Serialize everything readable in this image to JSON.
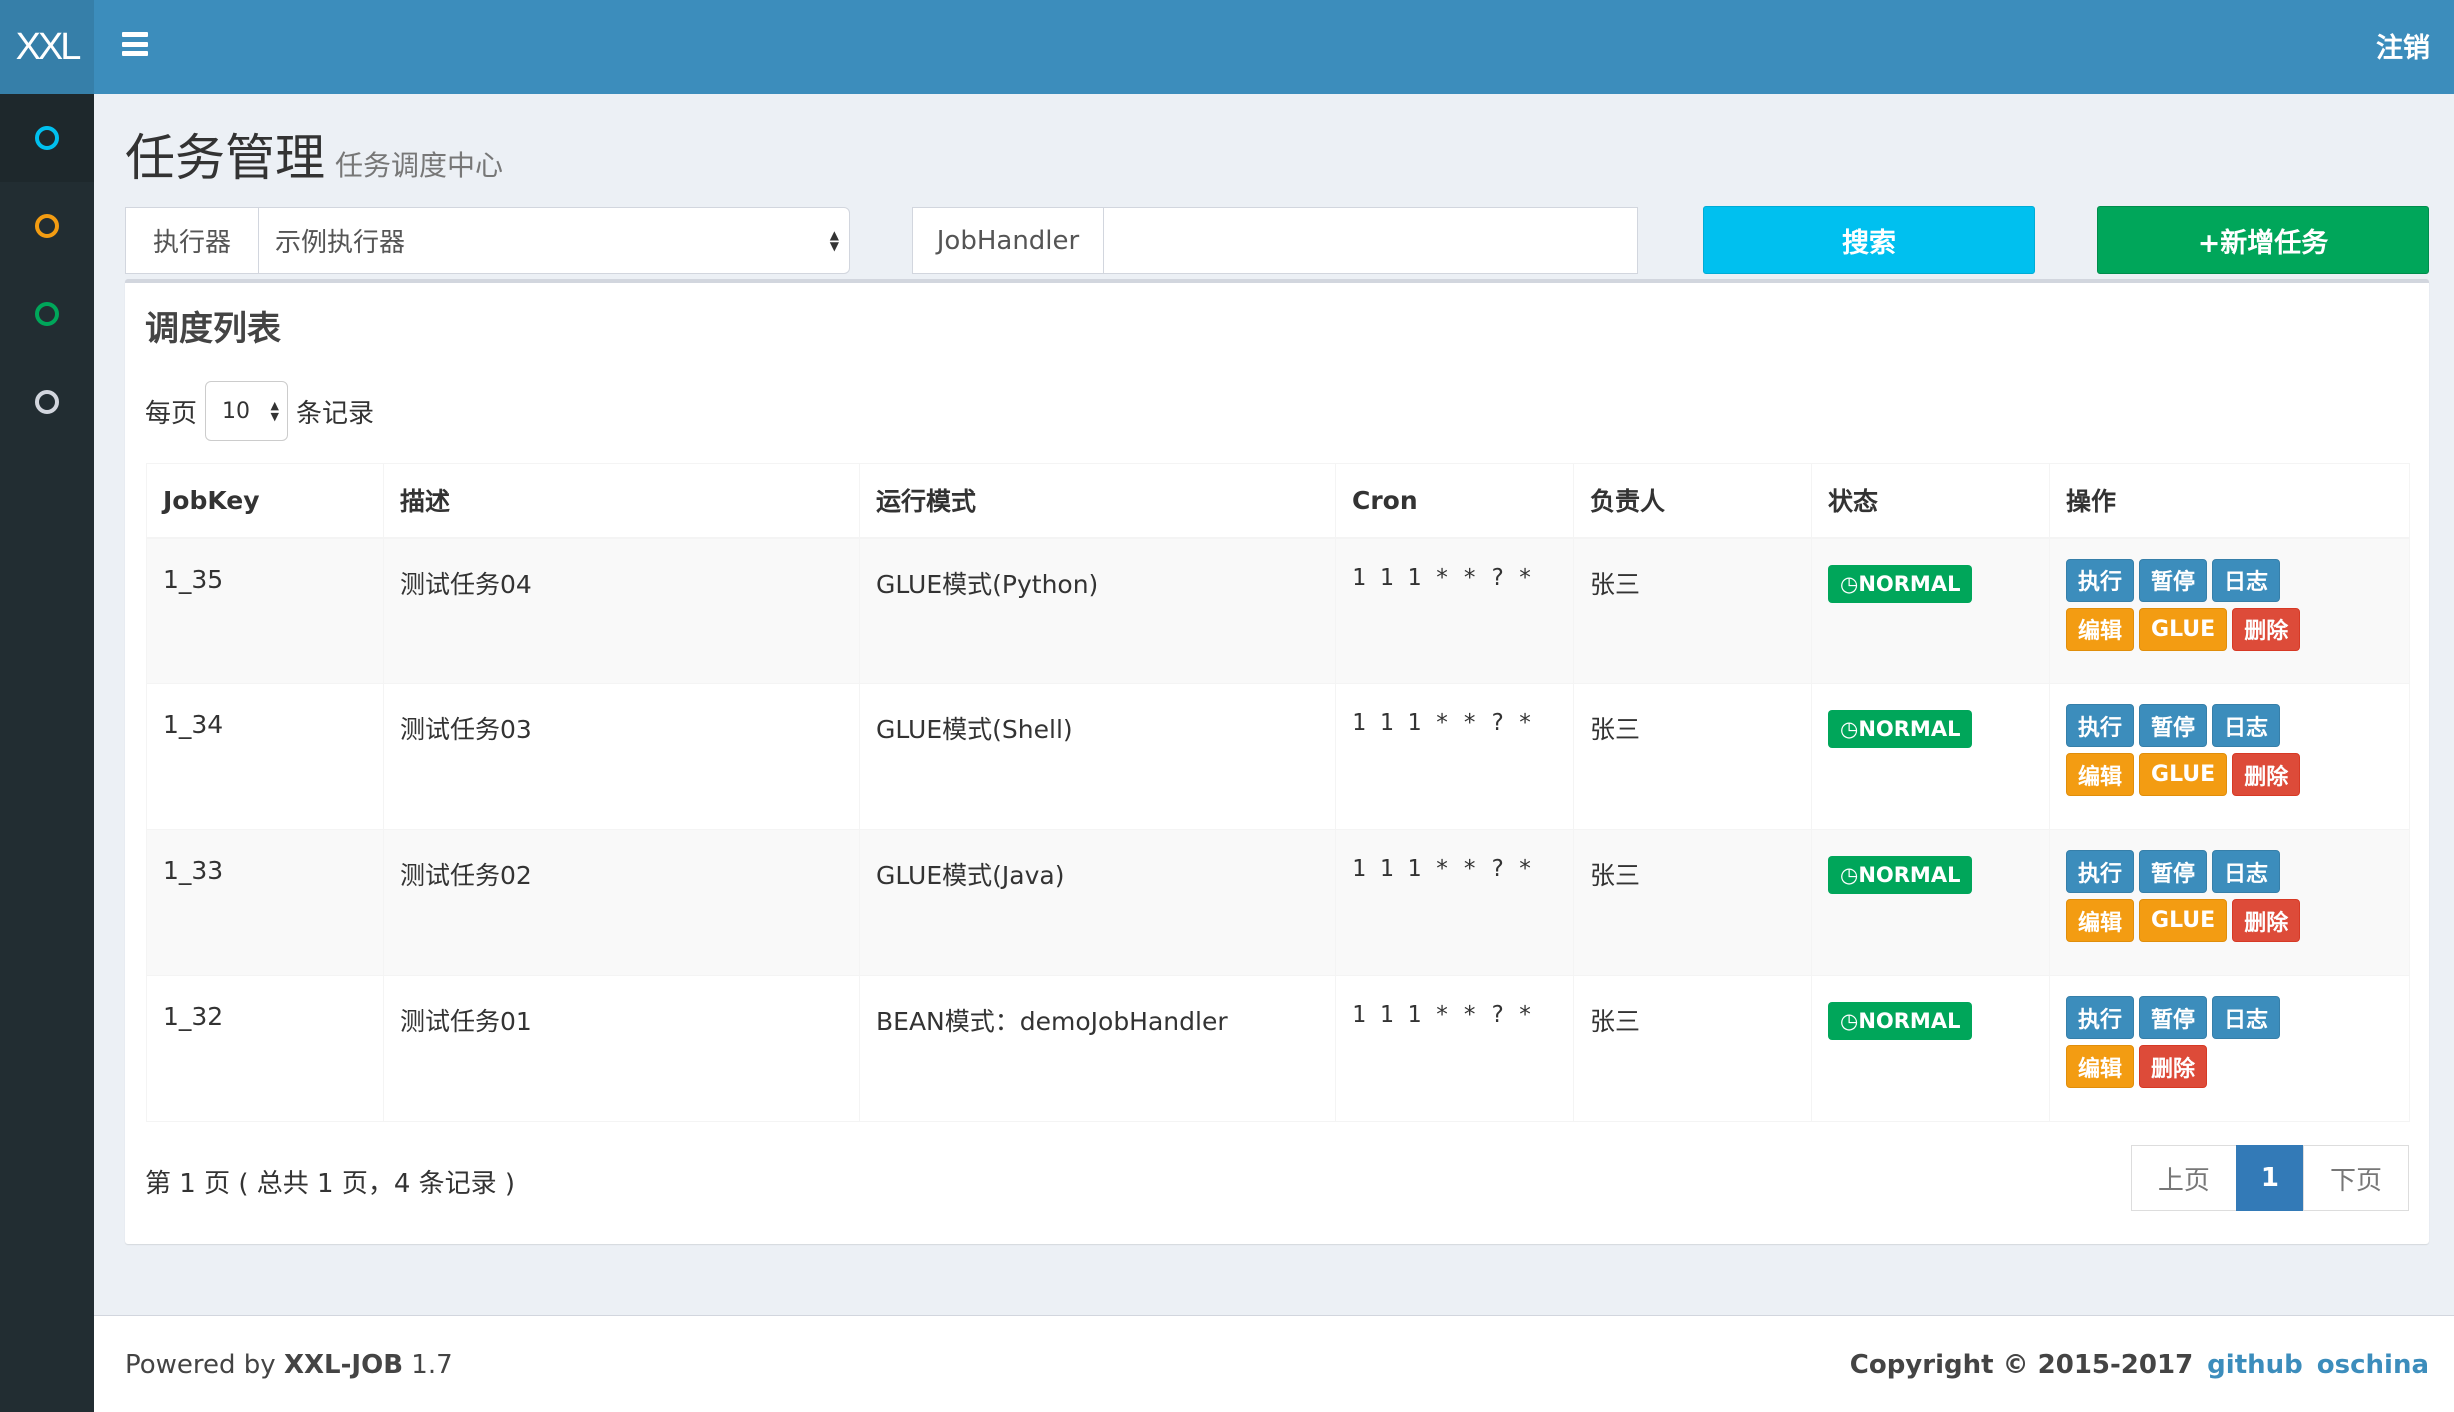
{
  "header": {
    "logo": "XXL",
    "logout": "注销"
  },
  "sidebar": {
    "items": [
      {
        "icon": "circle-icon",
        "color": "#00c0ef"
      },
      {
        "icon": "circle-icon",
        "color": "#f39c12"
      },
      {
        "icon": "circle-icon",
        "color": "#00a65a"
      },
      {
        "icon": "circle-icon",
        "color": "#d2d6de"
      }
    ]
  },
  "page": {
    "title": "任务管理",
    "subtitle": "任务调度中心"
  },
  "filters": {
    "executor_label": "执行器",
    "executor_value": "示例执行器",
    "jobhandler_label": "JobHandler",
    "jobhandler_value": "",
    "search": "搜索",
    "add": "+新增任务"
  },
  "box": {
    "title": "调度列表",
    "perpage_before": "每页",
    "perpage_value": "10",
    "perpage_after": "条记录"
  },
  "table": {
    "headers": [
      "JobKey",
      "描述",
      "运行模式",
      "Cron",
      "负责人",
      "状态",
      "操作"
    ],
    "rows": [
      {
        "key": "1_35",
        "desc": "测试任务04",
        "mode": "GLUE模式(Python)",
        "cron": "1 1 1 * * ? *",
        "owner": "张三",
        "status": "NORMAL",
        "glue": true
      },
      {
        "key": "1_34",
        "desc": "测试任务03",
        "mode": "GLUE模式(Shell)",
        "cron": "1 1 1 * * ? *",
        "owner": "张三",
        "status": "NORMAL",
        "glue": true
      },
      {
        "key": "1_33",
        "desc": "测试任务02",
        "mode": "GLUE模式(Java)",
        "cron": "1 1 1 * * ? *",
        "owner": "张三",
        "status": "NORMAL",
        "glue": true
      },
      {
        "key": "1_32",
        "desc": "测试任务01",
        "mode": "BEAN模式：demoJobHandler",
        "cron": "1 1 1 * * ? *",
        "owner": "张三",
        "status": "NORMAL",
        "glue": false
      }
    ],
    "actions": {
      "run": "执行",
      "pause": "暂停",
      "log": "日志",
      "edit": "编辑",
      "glue": "GLUE",
      "delete": "删除"
    }
  },
  "pagination": {
    "info": "第 1 页 ( 总共 1 页，4 条记录 )",
    "prev": "上页",
    "current": "1",
    "next": "下页"
  },
  "footer": {
    "powered": "Powered by ",
    "product": "XXL-JOB",
    "version": " 1.7",
    "copyright": "Copyright © 2015-2017",
    "github": "github",
    "oschina": "oschina"
  },
  "colors": {
    "header": "#3c8dbc",
    "sidebar": "#222d32",
    "search": "#00c0ef",
    "add": "#00a65a"
  }
}
